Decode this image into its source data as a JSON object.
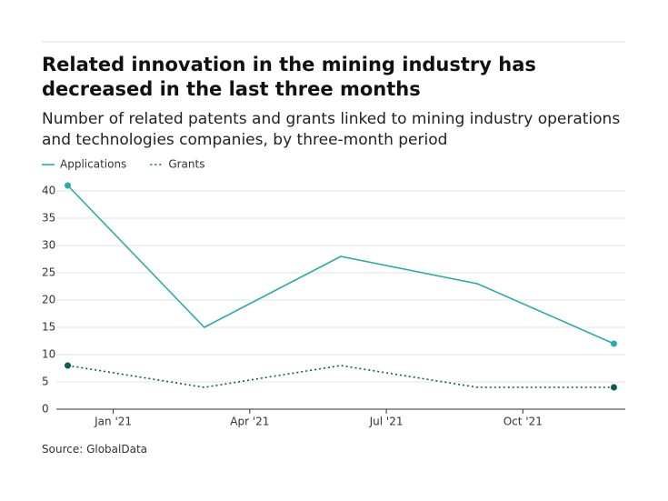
{
  "chart_data": {
    "type": "line",
    "title": "Related innovation in the mining industry has decreased in the last three months",
    "subtitle": "Number of related patents and grants linked to mining industry operations and technologies companies, by three-month period",
    "source": "Source: GlobalData",
    "x": [
      0,
      3,
      6,
      9,
      12
    ],
    "xlim": [
      -0.25,
      12.25
    ],
    "xticks": [
      {
        "value": 1,
        "label": "Jan '21"
      },
      {
        "value": 4,
        "label": "Apr '21"
      },
      {
        "value": 7,
        "label": "Jul '21"
      },
      {
        "value": 10,
        "label": "Oct '21"
      }
    ],
    "ylim": [
      0,
      40
    ],
    "yticks": [
      0,
      5,
      10,
      15,
      20,
      25,
      30,
      35,
      40
    ],
    "grid": true,
    "series": [
      {
        "name": "Applications",
        "color": "#2aaca8",
        "dash": "solid",
        "values": [
          41,
          15,
          28,
          23,
          12
        ]
      },
      {
        "name": "Grants",
        "color": "#0e5a58",
        "dash": "dotted",
        "values": [
          8,
          4,
          8,
          4,
          4
        ]
      }
    ]
  }
}
